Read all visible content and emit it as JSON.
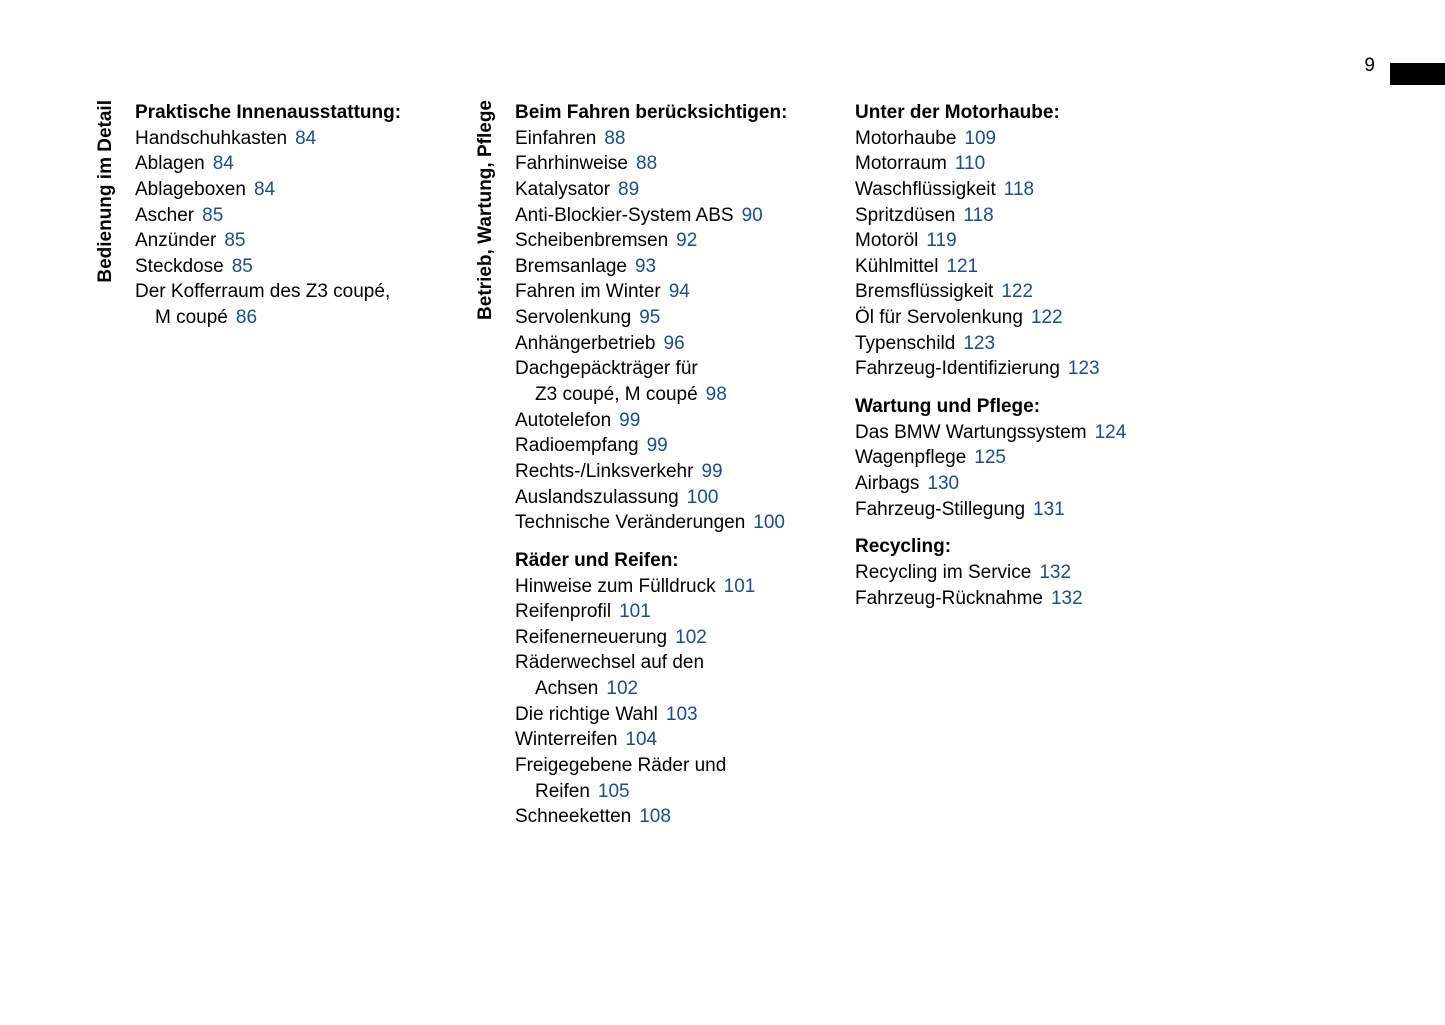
{
  "page_number": "9",
  "colors": {
    "text": "#000000",
    "page_ref": "#1a4d8f",
    "background": "#ffffff"
  },
  "typography": {
    "base_fontsize": 19,
    "heading_weight": "bold",
    "line_height": 1.35
  },
  "columns": [
    {
      "label": "Bedienung im Detail",
      "sections": [
        {
          "heading": "Praktische Innenausstattung:",
          "entries": [
            {
              "text": "Handschuhkasten",
              "page": "84"
            },
            {
              "text": "Ablagen",
              "page": "84"
            },
            {
              "text": "Ablageboxen",
              "page": "84"
            },
            {
              "text": "Ascher",
              "page": "85"
            },
            {
              "text": "Anzünder",
              "page": "85"
            },
            {
              "text": "Steckdose",
              "page": "85"
            },
            {
              "text": "Der Kofferraum des Z3 coupé,",
              "cont": "M coupé",
              "page": "86"
            }
          ]
        }
      ]
    },
    {
      "label": "Betrieb, Wartung, Pflege",
      "sections": [
        {
          "heading": "Beim Fahren berücksichtigen:",
          "entries": [
            {
              "text": "Einfahren",
              "page": "88"
            },
            {
              "text": "Fahrhinweise",
              "page": "88"
            },
            {
              "text": "Katalysator",
              "page": "89"
            },
            {
              "text": "Anti-Blockier-System ABS",
              "page": "90"
            },
            {
              "text": "Scheibenbremsen",
              "page": "92"
            },
            {
              "text": "Bremsanlage",
              "page": "93"
            },
            {
              "text": "Fahren im Winter",
              "page": "94"
            },
            {
              "text": "Servolenkung",
              "page": "95"
            },
            {
              "text": "Anhängerbetrieb",
              "page": "96"
            },
            {
              "text": "Dachgepäckträger für",
              "cont": "Z3 coupé, M coupé",
              "page": "98"
            },
            {
              "text": "Autotelefon",
              "page": "99"
            },
            {
              "text": "Radioempfang",
              "page": "99"
            },
            {
              "text": "Rechts-/Linksverkehr",
              "page": "99"
            },
            {
              "text": "Auslandszulassung",
              "page": "100"
            },
            {
              "text": "Technische Veränderungen",
              "page": "100"
            }
          ]
        },
        {
          "heading": "Räder und Reifen:",
          "spaced": true,
          "entries": [
            {
              "text": "Hinweise zum Fülldruck",
              "page": "101"
            },
            {
              "text": "Reifenprofil",
              "page": "101"
            },
            {
              "text": "Reifenerneuerung",
              "page": "102"
            },
            {
              "text": "Räderwechsel auf den",
              "cont": "Achsen",
              "page": "102"
            },
            {
              "text": "Die richtige Wahl",
              "page": "103"
            },
            {
              "text": "Winterreifen",
              "page": "104"
            },
            {
              "text": "Freigegebene Räder und",
              "cont": "Reifen",
              "page": "105"
            },
            {
              "text": "Schneeketten",
              "page": "108"
            }
          ]
        }
      ]
    },
    {
      "label": "",
      "sections": [
        {
          "heading": "Unter der Motorhaube:",
          "entries": [
            {
              "text": "Motorhaube",
              "page": "109"
            },
            {
              "text": "Motorraum",
              "page": "110"
            },
            {
              "text": "Waschflüssigkeit",
              "page": "118"
            },
            {
              "text": "Spritzdüsen",
              "page": "118"
            },
            {
              "text": "Motoröl",
              "page": "119"
            },
            {
              "text": "Kühlmittel",
              "page": "121"
            },
            {
              "text": "Bremsflüssigkeit",
              "page": "122"
            },
            {
              "text": "Öl für Servolenkung",
              "page": "122"
            },
            {
              "text": "Typenschild",
              "page": "123"
            },
            {
              "text": "Fahrzeug-Identifizierung",
              "page": "123"
            }
          ]
        },
        {
          "heading": "Wartung und Pflege:",
          "spaced": true,
          "entries": [
            {
              "text": "Das BMW Wartungssystem",
              "page": "124"
            },
            {
              "text": "Wagenpflege",
              "page": "125"
            },
            {
              "text": "Airbags",
              "page": "130"
            },
            {
              "text": "Fahrzeug-Stillegung",
              "page": "131"
            }
          ]
        },
        {
          "heading": "Recycling:",
          "spaced": true,
          "entries": [
            {
              "text": "Recycling im Service",
              "page": "132"
            },
            {
              "text": "Fahrzeug-Rücknahme",
              "page": "132"
            }
          ]
        }
      ]
    }
  ]
}
